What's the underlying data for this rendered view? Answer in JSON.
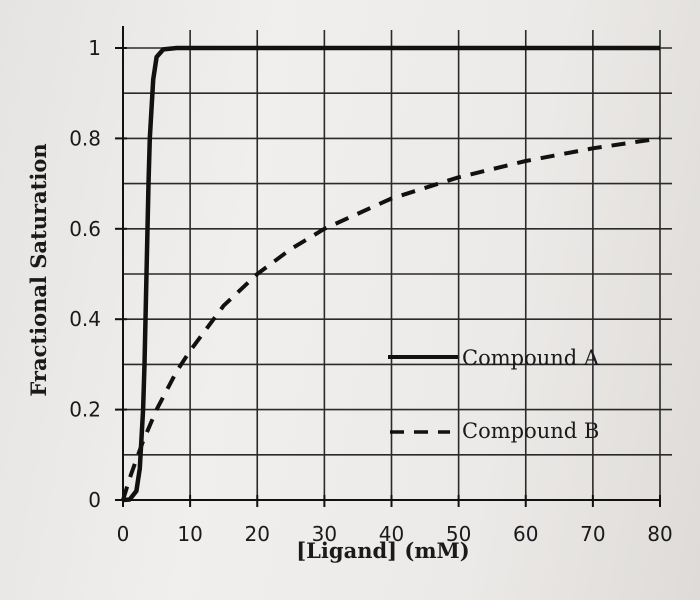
{
  "chart_data": {
    "type": "line",
    "title": "",
    "xlabel": "[Ligand] (mM)",
    "ylabel": "Fractional Saturation",
    "xlim": [
      0,
      80
    ],
    "ylim": [
      0,
      1
    ],
    "x_ticks": [
      "0",
      "10",
      "20",
      "30",
      "40",
      "50",
      "60",
      "70",
      "80"
    ],
    "y_ticks": [
      "0",
      "0.2",
      "0.4",
      "0.6",
      "0.8",
      "1"
    ],
    "grid": true,
    "legend_position": "right-middle",
    "series": [
      {
        "name": "Compound A",
        "style": "solid",
        "color": "#111111",
        "x": [
          0,
          1,
          2,
          2.5,
          3,
          3.2,
          3.5,
          3.8,
          4,
          4.5,
          5,
          6,
          8,
          10,
          20,
          40,
          60,
          80
        ],
        "y": [
          0,
          0.001,
          0.02,
          0.07,
          0.2,
          0.3,
          0.5,
          0.7,
          0.8,
          0.93,
          0.98,
          0.997,
          1,
          1,
          1,
          1,
          1,
          1
        ]
      },
      {
        "name": "Compound B",
        "style": "dashed",
        "color": "#111111",
        "x": [
          0,
          1,
          2,
          3,
          5,
          8,
          10,
          15,
          20,
          25,
          30,
          40,
          50,
          60,
          70,
          80
        ],
        "y": [
          0,
          0.048,
          0.09,
          0.13,
          0.2,
          0.285,
          0.33,
          0.43,
          0.5,
          0.555,
          0.6,
          0.667,
          0.714,
          0.75,
          0.778,
          0.8
        ]
      }
    ]
  }
}
